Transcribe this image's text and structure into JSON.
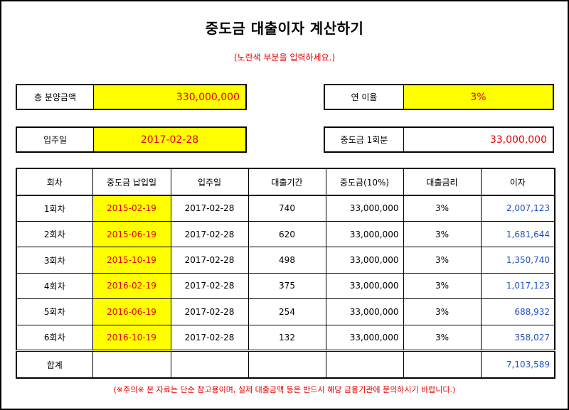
{
  "title": "중도금 대출이자 계산하기",
  "subtitle": "(노란색 부분을 입력하세요.)",
  "inputs": {
    "total_label": "총 분양금액",
    "total_value": "330,000,000",
    "rate_label": "연 이율",
    "rate_value": "3%",
    "movein_label": "입주일",
    "movein_value": "2017-02-28",
    "installment_label": "중도금 1회분",
    "installment_value": "33,000,000"
  },
  "table": {
    "headers": [
      "회차",
      "중도금 납입일",
      "입주일",
      "대출기간",
      "중도금(10%)",
      "대출금리",
      "이자"
    ],
    "rows": [
      {
        "round": "1회차",
        "paydate": "2015-02-19",
        "movein": "2017-02-28",
        "days": "740",
        "amount": "33,000,000",
        "rate": "3%",
        "interest": "2,007,123"
      },
      {
        "round": "2회차",
        "paydate": "2015-06-19",
        "movein": "2017-02-28",
        "days": "620",
        "amount": "33,000,000",
        "rate": "3%",
        "interest": "1,681,644"
      },
      {
        "round": "3회차",
        "paydate": "2015-10-19",
        "movein": "2017-02-28",
        "days": "498",
        "amount": "33,000,000",
        "rate": "3%",
        "interest": "1,350,740"
      },
      {
        "round": "4회차",
        "paydate": "2016-02-19",
        "movein": "2017-02-28",
        "days": "375",
        "amount": "33,000,000",
        "rate": "3%",
        "interest": "1,017,123"
      },
      {
        "round": "5회차",
        "paydate": "2016-06-19",
        "movein": "2017-02-28",
        "days": "254",
        "amount": "33,000,000",
        "rate": "3%",
        "interest": "688,932"
      },
      {
        "round": "6회차",
        "paydate": "2016-10-19",
        "movein": "2017-02-28",
        "days": "132",
        "amount": "33,000,000",
        "rate": "3%",
        "interest": "358,027"
      }
    ],
    "total_label": "합계",
    "total_value": "7,103,589"
  },
  "note": "(※주의※ 본 자료는 단순 참고용이며, 실제 대출금액 등은 반드시 해당 금융기관에 문의하시기 바랍니다.)",
  "colors": {
    "input_fill": "#ffff00",
    "red_text": "#e60000",
    "blue_text": "#1f4fbf"
  }
}
